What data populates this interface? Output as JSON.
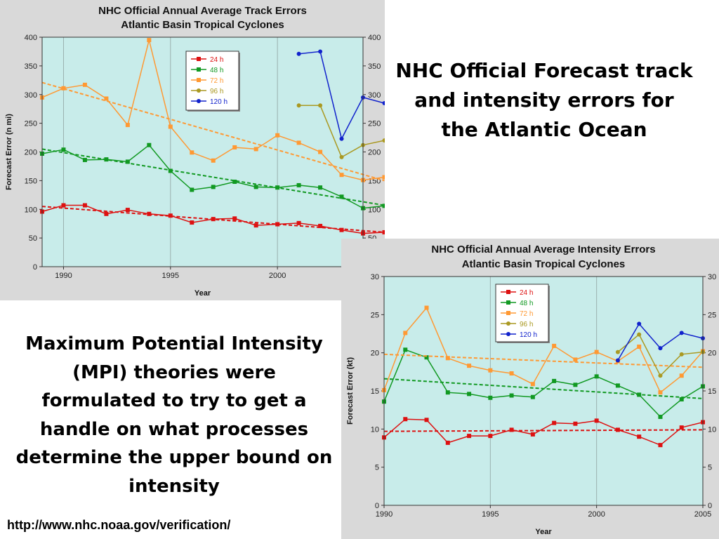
{
  "slide": {
    "title": "NHC Official Forecast track and intensity errors for the Atlantic Ocean",
    "body": "Maximum Potential Intensity (MPI) theories were formulated to try to get a handle on what processes determine the upper bound on intensity",
    "link": "http://www.nhc.noaa.gov/verification/"
  },
  "chart_data": [
    {
      "type": "line",
      "title": "NHC Official Annual Average Track Errors",
      "subtitle": "Atlantic Basin Tropical Cyclones",
      "xlabel": "Year",
      "ylabel": "Forecast Error (n mi)",
      "xlim": [
        1989,
        2004
      ],
      "ylim": [
        0,
        400
      ],
      "xticks": [
        1990,
        1995,
        2000
      ],
      "yticks": [
        0,
        50,
        100,
        150,
        200,
        250,
        300,
        350,
        400
      ],
      "grid": true,
      "legend_position": "top-center",
      "plot_background": "#c8ecea",
      "series": [
        {
          "name": "24 h",
          "color": "#dd1111",
          "marker": "square",
          "x": [
            1989,
            1990,
            1991,
            1992,
            1993,
            1994,
            1995,
            1996,
            1997,
            1998,
            1999,
            2000,
            2001,
            2002,
            2003,
            2004,
            2005
          ],
          "y": [
            96,
            107,
            107,
            92,
            99,
            92,
            89,
            77,
            83,
            84,
            72,
            74,
            76,
            71,
            64,
            58,
            60
          ],
          "trend": [
            105,
            60
          ]
        },
        {
          "name": "48 h",
          "color": "#119922",
          "marker": "square",
          "x": [
            1989,
            1990,
            1991,
            1992,
            1993,
            1994,
            1995,
            1996,
            1997,
            1998,
            1999,
            2000,
            2001,
            2002,
            2003,
            2004,
            2005
          ],
          "y": [
            197,
            204,
            186,
            187,
            183,
            212,
            167,
            134,
            139,
            148,
            139,
            138,
            142,
            138,
            122,
            102,
            106
          ],
          "trend": [
            205,
            107
          ]
        },
        {
          "name": "72 h",
          "color": "#ff9933",
          "marker": "square",
          "x": [
            1989,
            1990,
            1991,
            1992,
            1993,
            1994,
            1995,
            1996,
            1997,
            1998,
            1999,
            2000,
            2001,
            2002,
            2003,
            2004,
            2005
          ],
          "y": [
            295,
            311,
            317,
            293,
            247,
            395,
            244,
            199,
            185,
            208,
            205,
            229,
            216,
            200,
            160,
            151,
            156
          ],
          "trend": [
            321,
            150
          ]
        },
        {
          "name": "96 h",
          "color": "#aa9922",
          "marker": "circle",
          "x": [
            2001,
            2002,
            2003,
            2004,
            2005
          ],
          "y": [
            281,
            281,
            191,
            212,
            220
          ]
        },
        {
          "name": "120 h",
          "color": "#1122cc",
          "marker": "circle",
          "x": [
            2001,
            2002,
            2003,
            2004,
            2005
          ],
          "y": [
            371,
            375,
            223,
            295,
            285
          ]
        }
      ]
    },
    {
      "type": "line",
      "title": "NHC Official Annual Average Intensity Errors",
      "subtitle": "Atlantic Basin Tropical Cyclones",
      "xlabel": "Year",
      "ylabel": "Forecast Error (kt)",
      "xlim": [
        1990,
        2005
      ],
      "ylim": [
        0,
        30
      ],
      "xticks": [
        1990,
        1995,
        2000,
        2005
      ],
      "yticks": [
        0,
        5,
        10,
        15,
        20,
        25,
        30
      ],
      "grid": true,
      "legend_position": "top-center",
      "plot_background": "#c8ecea",
      "series": [
        {
          "name": "24 h",
          "color": "#dd1111",
          "marker": "square",
          "x": [
            1990,
            1991,
            1992,
            1993,
            1994,
            1995,
            1996,
            1997,
            1998,
            1999,
            2000,
            2001,
            2002,
            2003,
            2004,
            2005
          ],
          "y": [
            8.9,
            11.3,
            11.2,
            8.2,
            9.1,
            9.1,
            9.9,
            9.3,
            10.8,
            10.7,
            11.1,
            9.9,
            9.0,
            7.9,
            10.2,
            10.9
          ],
          "trend": [
            9.7,
            9.9
          ]
        },
        {
          "name": "48 h",
          "color": "#119922",
          "marker": "square",
          "x": [
            1990,
            1991,
            1992,
            1993,
            1994,
            1995,
            1996,
            1997,
            1998,
            1999,
            2000,
            2001,
            2002,
            2003,
            2004,
            2005
          ],
          "y": [
            13.6,
            20.4,
            19.4,
            14.8,
            14.6,
            14.1,
            14.4,
            14.2,
            16.3,
            15.8,
            16.9,
            15.7,
            14.5,
            11.6,
            13.9,
            15.6
          ],
          "trend": [
            16.6,
            14.0
          ]
        },
        {
          "name": "72 h",
          "color": "#ff9933",
          "marker": "square",
          "x": [
            1990,
            1991,
            1992,
            1993,
            1994,
            1995,
            1996,
            1997,
            1998,
            1999,
            2000,
            2001,
            2002,
            2003,
            2004,
            2005
          ],
          "y": [
            15.1,
            22.6,
            25.9,
            19.3,
            18.3,
            17.7,
            17.3,
            15.9,
            20.9,
            19.1,
            20.1,
            18.9,
            20.8,
            14.8,
            17.0,
            20.2
          ],
          "trend": [
            19.8,
            18.1
          ]
        },
        {
          "name": "96 h",
          "color": "#aa9922",
          "marker": "circle",
          "x": [
            2001,
            2002,
            2003,
            2004,
            2005
          ],
          "y": [
            20.1,
            22.4,
            17.0,
            19.8,
            20.1
          ]
        },
        {
          "name": "120 h",
          "color": "#1122cc",
          "marker": "circle",
          "x": [
            2001,
            2002,
            2003,
            2004,
            2005
          ],
          "y": [
            19.0,
            23.8,
            20.6,
            22.6,
            21.9
          ]
        }
      ]
    }
  ]
}
